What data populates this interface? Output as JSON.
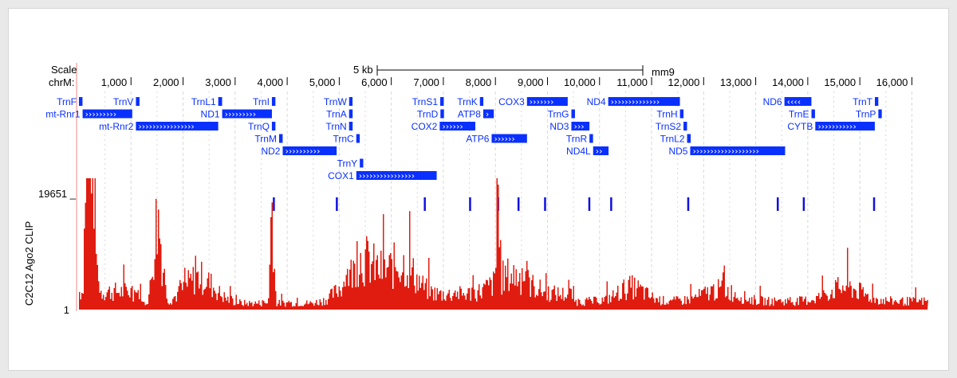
{
  "track_header": {
    "scale_label": "Scale",
    "chrom_label": "chrM:",
    "scale_bar_label": "5 kb",
    "assembly": "mm9"
  },
  "position_ticks": [
    "1,000",
    "2,000",
    "3,000",
    "4,000",
    "5,000",
    "6,000",
    "7,000",
    "8,000",
    "9,000",
    "10,000",
    "11,000",
    "12,000",
    "13,000",
    "14,000",
    "15,000",
    "16,000"
  ],
  "colors": {
    "gene": "#0a30ff",
    "signal": "#e01c10",
    "grid": "#d9d9d9",
    "axis_line": "#f08a8a",
    "marker": "#1010e0"
  },
  "gene_track": {
    "genes": [
      {
        "name": "TrnF",
        "start": 0,
        "end": 68,
        "row": 0,
        "label_side": "left"
      },
      {
        "name": "TrnV",
        "start": 1094,
        "end": 1163,
        "row": 0,
        "label_side": "left"
      },
      {
        "name": "TrnL1",
        "start": 2676,
        "end": 2750,
        "row": 0,
        "label_side": "left"
      },
      {
        "name": "TrnI",
        "start": 3706,
        "end": 3774,
        "row": 0,
        "label_side": "left"
      },
      {
        "name": "TrnW",
        "start": 5190,
        "end": 5255,
        "row": 0,
        "label_side": "left"
      },
      {
        "name": "TrnS1",
        "start": 6940,
        "end": 7008,
        "row": 0,
        "label_side": "left"
      },
      {
        "name": "TrnK",
        "start": 7702,
        "end": 7768,
        "row": 0,
        "label_side": "left"
      },
      {
        "name": "COX3",
        "start": 8606,
        "end": 9389,
        "row": 0,
        "label_side": "left",
        "arrows": true
      },
      {
        "name": "ND4",
        "start": 10167,
        "end": 11544,
        "row": 0,
        "label_side": "left",
        "arrows": true
      },
      {
        "name": "ND6",
        "start": 13552,
        "end": 14070,
        "row": 0,
        "label_side": "left",
        "arrows": true,
        "reverse": true
      },
      {
        "name": "TrnT",
        "start": 15289,
        "end": 15355,
        "row": 0,
        "label_side": "left"
      },
      {
        "name": "mt-Rnr1",
        "start": 70,
        "end": 1024,
        "row": 1,
        "label_side": "left",
        "arrows": true
      },
      {
        "name": "ND1",
        "start": 2751,
        "end": 3707,
        "row": 1,
        "label_side": "left",
        "arrows": true
      },
      {
        "name": "TrnA",
        "start": 5189,
        "end": 5257,
        "row": 1,
        "label_side": "left"
      },
      {
        "name": "TrnD",
        "start": 6944,
        "end": 7012,
        "row": 1,
        "label_side": "left"
      },
      {
        "name": "ATP8",
        "start": 7766,
        "end": 7969,
        "row": 1,
        "label_side": "left",
        "arrows": true
      },
      {
        "name": "TrnG",
        "start": 9460,
        "end": 9528,
        "row": 1,
        "label_side": "left"
      },
      {
        "name": "TrnH",
        "start": 11545,
        "end": 11613,
        "row": 1,
        "label_side": "left"
      },
      {
        "name": "TrnE",
        "start": 14071,
        "end": 14139,
        "row": 1,
        "label_side": "left"
      },
      {
        "name": "TrnP",
        "start": 15356,
        "end": 15422,
        "row": 1,
        "label_side": "left"
      },
      {
        "name": "mt-Rnr2",
        "start": 1094,
        "end": 2675,
        "row": 2,
        "label_side": "left",
        "arrows": true
      },
      {
        "name": "TrnQ",
        "start": 3706,
        "end": 3774,
        "row": 2,
        "label_side": "left"
      },
      {
        "name": "TrnN",
        "start": 5189,
        "end": 5257,
        "row": 2,
        "label_side": "left"
      },
      {
        "name": "COX2",
        "start": 6930,
        "end": 7614,
        "row": 2,
        "label_side": "left",
        "arrows": true
      },
      {
        "name": "ND3",
        "start": 9459,
        "end": 9806,
        "row": 2,
        "label_side": "left",
        "arrows": true
      },
      {
        "name": "TrnS2",
        "start": 11613,
        "end": 11681,
        "row": 2,
        "label_side": "left"
      },
      {
        "name": "CYTB",
        "start": 14145,
        "end": 15288,
        "row": 2,
        "label_side": "left",
        "arrows": true
      },
      {
        "name": "TrnM",
        "start": 3845,
        "end": 3913,
        "row": 3,
        "label_side": "left"
      },
      {
        "name": "TrnC",
        "start": 5327,
        "end": 5394,
        "row": 3,
        "label_side": "left"
      },
      {
        "name": "ATP6",
        "start": 7927,
        "end": 8607,
        "row": 3,
        "label_side": "left",
        "arrows": true
      },
      {
        "name": "TrnR",
        "start": 9807,
        "end": 9875,
        "row": 3,
        "label_side": "left"
      },
      {
        "name": "TrnL2",
        "start": 11682,
        "end": 11751,
        "row": 3,
        "label_side": "left"
      },
      {
        "name": "ND2",
        "start": 3914,
        "end": 4950,
        "row": 4,
        "label_side": "left",
        "arrows": true
      },
      {
        "name": "ND4L",
        "start": 9877,
        "end": 10173,
        "row": 4,
        "label_side": "left",
        "arrows": true
      },
      {
        "name": "ND5",
        "start": 11742,
        "end": 13565,
        "row": 4,
        "label_side": "left",
        "arrows": true
      },
      {
        "name": "TrnY",
        "start": 5395,
        "end": 5461,
        "row": 5,
        "label_side": "left"
      },
      {
        "name": "COX1",
        "start": 5328,
        "end": 6872,
        "row": 6,
        "label_side": "left",
        "arrows": true
      }
    ]
  },
  "signal_track": {
    "label": "C2C12 Ago2 CLIP",
    "max_label": "19651 _",
    "min_label": "1",
    "marker_positions": [
      3740,
      4950,
      6640,
      7510,
      8050,
      8440,
      8950,
      9800,
      10220,
      11700,
      13420,
      13920,
      15270
    ]
  }
}
